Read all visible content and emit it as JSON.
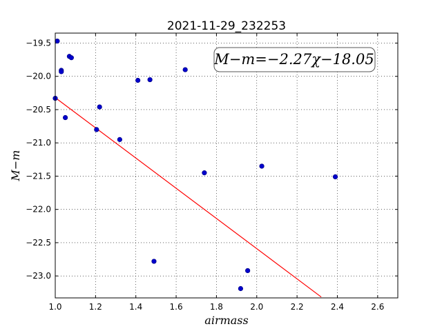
{
  "chart_data": {
    "type": "scatter",
    "title": "2021-11-29_232253",
    "xlabel": "airmass",
    "ylabel": "M−m",
    "xlim": [
      1.0,
      2.7
    ],
    "ylim": [
      -23.33,
      -19.35
    ],
    "xticks": [
      1.0,
      1.2,
      1.4,
      1.6,
      1.8,
      2.0,
      2.2,
      2.4,
      2.6
    ],
    "xtick_labels": [
      "1.0",
      "1.2",
      "1.4",
      "1.6",
      "1.8",
      "2.0",
      "2.2",
      "2.4",
      "2.6"
    ],
    "yticks": [
      -19.5,
      -20.0,
      -20.5,
      -21.0,
      -21.5,
      -22.0,
      -22.5,
      -23.0
    ],
    "ytick_labels": [
      "−19.5",
      "−20.0",
      "−20.5",
      "−21.0",
      "−21.5",
      "−22.0",
      "−22.5",
      "−23.0"
    ],
    "grid": true,
    "annotation": "M−m=−2.27χ−18.05",
    "point_color": "#0000cc",
    "line_color": "#ff0000",
    "fit": {
      "slope": -2.27,
      "intercept": -18.05,
      "x_range": [
        1.0,
        2.32
      ]
    },
    "series": [
      {
        "x": [
          1.0,
          1.01,
          1.03,
          1.03,
          1.05,
          1.07,
          1.08,
          1.205,
          1.22,
          1.32,
          1.41,
          1.47,
          1.49,
          1.645,
          1.74,
          1.92,
          1.955,
          2.025,
          2.39
        ],
        "y": [
          -20.33,
          -19.47,
          -19.91,
          -19.93,
          -20.62,
          -19.7,
          -19.72,
          -20.8,
          -20.46,
          -20.95,
          -20.06,
          -20.05,
          -22.78,
          -19.9,
          -21.45,
          -23.19,
          -22.92,
          -21.35,
          -21.51
        ]
      }
    ]
  }
}
